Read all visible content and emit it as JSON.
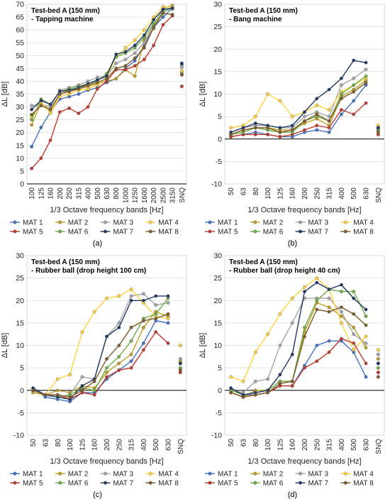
{
  "chart_data": [
    {
      "type": "line",
      "panel_label": "(a)",
      "title_lines": [
        "Test-bed A (150 mm)",
        "- Tapping machine"
      ],
      "xlabel": "1/3 Octave frequency bands [Hz]",
      "ylabel": "ΔL [dB]",
      "ylim": [
        0,
        70
      ],
      "yticks": [
        0,
        5,
        10,
        15,
        20,
        25,
        30,
        35,
        40,
        45,
        50,
        55,
        60,
        65,
        70
      ],
      "grid": true,
      "legend_position": "bottom",
      "categories": [
        "100",
        "125",
        "160",
        "200",
        "250",
        "315",
        "400",
        "500",
        "630",
        "800",
        "1000",
        "1250",
        "1600",
        "2000",
        "2500",
        "3150"
      ],
      "extra_category": "SNQ",
      "series": [
        {
          "name": "MAT 1",
          "color": "#4472c4",
          "values": [
            14.5,
            22,
            28,
            33,
            34,
            35,
            36.5,
            37.5,
            39.5,
            41,
            45,
            48,
            54,
            61,
            65,
            68.5
          ],
          "snq": 46.5
        },
        {
          "name": "MAT 2",
          "color": "#c0a020",
          "values": [
            23,
            31.5,
            28.5,
            35,
            36.5,
            37,
            38,
            39,
            40,
            41,
            44.5,
            42,
            56,
            60.5,
            68.5,
            69.5
          ],
          "snq": 44
        },
        {
          "name": "MAT 3",
          "color": "#a5a5a5",
          "values": [
            30.5,
            31,
            30,
            36.5,
            37.5,
            38.5,
            40,
            41.5,
            42,
            47,
            48.5,
            51,
            55,
            62,
            68,
            68
          ],
          "snq": 45.5
        },
        {
          "name": "MAT 4",
          "color": "#ffd23f",
          "values": [
            26,
            32,
            27.5,
            34,
            35,
            36.5,
            37,
            38.5,
            41.5,
            49.5,
            53,
            56,
            60,
            65,
            69,
            69
          ],
          "snq": 44
        },
        {
          "name": "MAT 5",
          "color": "#c0392b",
          "values": [
            6,
            10,
            17,
            28,
            29.5,
            27.5,
            30,
            37,
            40,
            44.5,
            44.5,
            46,
            48.5,
            54,
            62,
            65.5
          ],
          "snq": 38
        },
        {
          "name": "MAT 6",
          "color": "#70ad47",
          "values": [
            25,
            33,
            31,
            36,
            37,
            38,
            39,
            40,
            43,
            49.5,
            51,
            53,
            57,
            62.5,
            67,
            68.5
          ],
          "snq": 43
        },
        {
          "name": "MAT 7",
          "color": "#1f3864",
          "values": [
            29,
            32.5,
            31,
            36,
            36.5,
            37.5,
            39,
            40.5,
            42,
            50.5,
            51.5,
            54,
            58,
            64,
            68,
            68.5
          ],
          "snq": 47
        },
        {
          "name": "MAT 8",
          "color": "#7f5a2a",
          "values": [
            27,
            30.5,
            29,
            35,
            36,
            37,
            38.5,
            39.5,
            41,
            45,
            46,
            49,
            53,
            61,
            66.5,
            66
          ],
          "snq": 42.5
        }
      ]
    },
    {
      "type": "line",
      "panel_label": "(b)",
      "title_lines": [
        "Test-bed A (150 mm)",
        "- Bang machine"
      ],
      "xlabel": "1/3 Octave frequency bands [Hz]",
      "ylabel": "ΔL [dB]",
      "ylim": [
        -10,
        30
      ],
      "yticks": [
        -10,
        -5,
        0,
        5,
        10,
        15,
        20,
        25,
        30
      ],
      "grid": true,
      "legend_position": "bottom",
      "categories": [
        "50",
        "63",
        "80",
        "100",
        "125",
        "160",
        "200",
        "250",
        "315",
        "400",
        "500",
        "630"
      ],
      "extra_category": "SNQ",
      "series": [
        {
          "name": "MAT 1",
          "color": "#4472c4",
          "values": [
            0.5,
            1,
            1.5,
            1,
            0.5,
            0.5,
            1.5,
            2,
            1.5,
            5.5,
            8.5,
            12
          ],
          "snq": 2
        },
        {
          "name": "MAT 2",
          "color": "#c0a020",
          "values": [
            1,
            2,
            2.5,
            2.5,
            2,
            2,
            3.5,
            4.5,
            3,
            9.5,
            11,
            13
          ],
          "snq": 2
        },
        {
          "name": "MAT 3",
          "color": "#a5a5a5",
          "values": [
            1.5,
            2.5,
            3,
            3,
            2.5,
            2.5,
            5,
            6,
            5,
            12,
            13.5,
            15.5
          ],
          "snq": 2.5
        },
        {
          "name": "MAT 4",
          "color": "#ffd23f",
          "values": [
            2.5,
            3,
            5,
            10,
            8.5,
            5,
            6,
            7.5,
            6.5,
            10.5,
            12,
            13.5
          ],
          "snq": 3
        },
        {
          "name": "MAT 5",
          "color": "#c0392b",
          "values": [
            0.5,
            1,
            1,
            1,
            0.5,
            1,
            2,
            3,
            2.5,
            6.5,
            5.5,
            8
          ],
          "snq": 1
        },
        {
          "name": "MAT 6",
          "color": "#70ad47",
          "values": [
            1,
            1.5,
            2.5,
            2,
            1.5,
            1.5,
            4,
            5,
            4,
            10,
            12,
            14
          ],
          "snq": 2
        },
        {
          "name": "MAT 7",
          "color": "#1f3864",
          "values": [
            1.5,
            2.5,
            3.5,
            3,
            2.5,
            3,
            6,
            9,
            11,
            13.5,
            17.5,
            17
          ],
          "snq": 2.5
        },
        {
          "name": "MAT 8",
          "color": "#7f5a2a",
          "values": [
            1,
            2,
            2.5,
            2.5,
            1.5,
            2,
            4,
            5.5,
            4,
            9,
            10.5,
            12.5
          ],
          "snq": 1.5
        }
      ]
    },
    {
      "type": "line",
      "panel_label": "(c)",
      "title_lines": [
        "Test-bed A (150 mm)",
        "- Rubber ball (drop height 100 cm)"
      ],
      "xlabel": "1/3 Octave frequency bands [Hz]",
      "ylabel": "ΔL [dB]",
      "ylim": [
        -10,
        30
      ],
      "yticks": [
        -10,
        -5,
        0,
        5,
        10,
        15,
        20,
        25,
        30
      ],
      "grid": true,
      "legend_position": "bottom",
      "categories": [
        "50",
        "63",
        "80",
        "100",
        "125",
        "160",
        "200",
        "250",
        "315",
        "400",
        "500",
        "630"
      ],
      "extra_category": "SNQ",
      "series": [
        {
          "name": "MAT 1",
          "color": "#4472c4",
          "values": [
            0.5,
            -1.5,
            -2,
            -2.5,
            -0.5,
            -0.5,
            2.5,
            4.5,
            6.5,
            10.5,
            15.5,
            15
          ],
          "snq": 6
        },
        {
          "name": "MAT 2",
          "color": "#c0a020",
          "values": [
            -0.5,
            -1,
            0,
            -0.5,
            1,
            0.5,
            4,
            6,
            8,
            14,
            17.5,
            16.5
          ],
          "snq": 6.5
        },
        {
          "name": "MAT 3",
          "color": "#a5a5a5",
          "values": [
            0.5,
            -1,
            -1.5,
            -1,
            3,
            2.5,
            12,
            15,
            21,
            21.5,
            19,
            19.5
          ],
          "snq": 7
        },
        {
          "name": "MAT 4",
          "color": "#ffd23f",
          "values": [
            0,
            -1,
            2.5,
            3.5,
            13,
            17.5,
            20.5,
            21,
            22.5,
            19.5,
            16.5,
            16
          ],
          "snq": 10
        },
        {
          "name": "MAT 5",
          "color": "#c0392b",
          "values": [
            0,
            -1,
            -1,
            -2,
            -0.5,
            -1,
            3,
            4.5,
            5,
            9,
            13,
            10.5
          ],
          "snq": 4
        },
        {
          "name": "MAT 6",
          "color": "#70ad47",
          "values": [
            0,
            -1,
            -1.5,
            -1,
            0.5,
            0,
            5,
            7.5,
            11,
            16,
            17,
            20.5
          ],
          "snq": 5
        },
        {
          "name": "MAT 7",
          "color": "#1f3864",
          "values": [
            0.5,
            -1,
            -1.5,
            -2,
            1,
            2.5,
            12,
            14,
            20,
            20,
            21,
            21
          ],
          "snq": 6
        },
        {
          "name": "MAT 8",
          "color": "#7f5a2a",
          "values": [
            0,
            -1,
            -1,
            -1.5,
            0,
            2,
            7,
            10,
            14,
            15.5,
            16,
            17
          ],
          "snq": 4.5
        }
      ]
    },
    {
      "type": "line",
      "panel_label": "(d)",
      "title_lines": [
        "Test-bed A (150 mm)",
        "- Rubber ball (drop height 40 cm)"
      ],
      "xlabel": "1/3 Octave frequency bands [Hz]",
      "ylabel": "ΔL [dB]",
      "ylim": [
        -10,
        30
      ],
      "yticks": [
        -10,
        -5,
        0,
        5,
        10,
        15,
        20,
        25,
        30
      ],
      "grid": true,
      "legend_position": "bottom",
      "categories": [
        "50",
        "63",
        "80",
        "100",
        "125",
        "160",
        "200",
        "250",
        "315",
        "400",
        "500",
        "630"
      ],
      "extra_category": "SNQ",
      "series": [
        {
          "name": "MAT 1",
          "color": "#4472c4",
          "values": [
            0.5,
            -1,
            -1,
            -0.5,
            1,
            1,
            5.5,
            10,
            11,
            11,
            8.5,
            3
          ],
          "snq": 6
        },
        {
          "name": "MAT 2",
          "color": "#c0a020",
          "values": [
            -0.5,
            -1.5,
            0,
            0,
            2,
            2,
            13,
            19.5,
            18.5,
            16.5,
            14,
            9.5
          ],
          "snq": 7
        },
        {
          "name": "MAT 3",
          "color": "#a5a5a5",
          "values": [
            0,
            -0.5,
            2,
            2.5,
            10,
            15,
            20.5,
            20.5,
            20.5,
            17.5,
            12.5,
            10.5
          ],
          "snq": 8
        },
        {
          "name": "MAT 4",
          "color": "#ffd23f",
          "values": [
            3,
            2,
            8.5,
            12.5,
            17,
            20.5,
            23,
            25,
            22.5,
            15,
            9,
            12
          ],
          "snq": 9
        },
        {
          "name": "MAT 5",
          "color": "#c0392b",
          "values": [
            -0.5,
            -1.5,
            -1,
            -0.5,
            1,
            1,
            5,
            6.5,
            8.5,
            11.5,
            10.5,
            6
          ],
          "snq": 4
        },
        {
          "name": "MAT 6",
          "color": "#70ad47",
          "values": [
            0,
            -1,
            -0.5,
            0,
            2,
            2,
            14,
            20,
            22.5,
            22,
            22,
            16.5
          ],
          "snq": 5
        },
        {
          "name": "MAT 7",
          "color": "#1f3864",
          "values": [
            0.5,
            -1,
            -0.5,
            0,
            3.5,
            8,
            22,
            24,
            22.5,
            23.5,
            20.5,
            18
          ],
          "snq": 6
        },
        {
          "name": "MAT 8",
          "color": "#7f5a2a",
          "values": [
            -0.5,
            -1.5,
            -1,
            -0.5,
            1.5,
            2,
            12,
            18,
            17.5,
            18.5,
            17,
            14.5
          ],
          "snq": 3
        }
      ]
    }
  ]
}
